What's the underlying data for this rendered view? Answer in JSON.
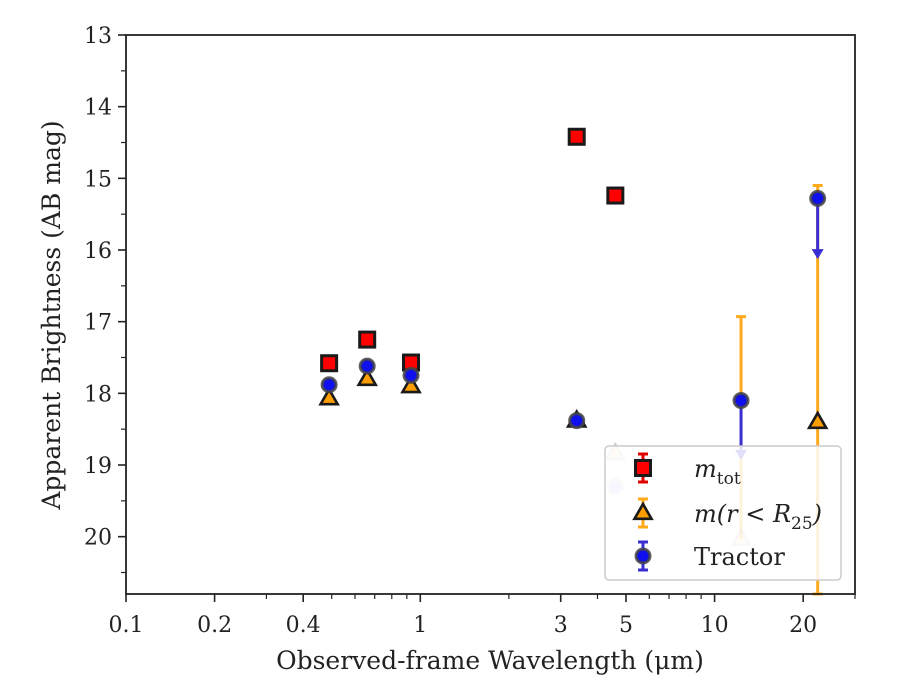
{
  "chart_data": {
    "type": "scatter",
    "xlabel": "Observed-frame Wavelength (μm)",
    "ylabel": "Apparent Brightness (AB mag)",
    "xscale": "log",
    "xlim": [
      0.1,
      30
    ],
    "ylim": [
      20.8,
      13
    ],
    "y_inverted": true,
    "grid": false,
    "legend_placement": "lower right",
    "x_ticks": [
      {
        "value": 0.1,
        "label": "0.1"
      },
      {
        "value": 0.2,
        "label": "0.2"
      },
      {
        "value": 0.4,
        "label": "0.4"
      },
      {
        "value": 1,
        "label": "1"
      },
      {
        "value": 3,
        "label": "3"
      },
      {
        "value": 5,
        "label": "5"
      },
      {
        "value": 10,
        "label": "10"
      },
      {
        "value": 20,
        "label": "20"
      }
    ],
    "y_ticks": [
      {
        "value": 13,
        "label": "13"
      },
      {
        "value": 14,
        "label": "14"
      },
      {
        "value": 15,
        "label": "15"
      },
      {
        "value": 16,
        "label": "16"
      },
      {
        "value": 17,
        "label": "17"
      },
      {
        "value": 18,
        "label": "18"
      },
      {
        "value": 19,
        "label": "19"
      },
      {
        "value": 20,
        "label": "20"
      }
    ],
    "series": [
      {
        "name": "m_tot",
        "legend": {
          "base": "m",
          "sub": "tot"
        },
        "marker": "square",
        "fill": "#ff0000",
        "edge": "#1a1a1a",
        "errcolor": "#e00000",
        "points": [
          {
            "x": 0.49,
            "y": 17.58
          },
          {
            "x": 0.66,
            "y": 17.25
          },
          {
            "x": 0.93,
            "y": 17.57
          },
          {
            "x": 3.4,
            "y": 14.42
          },
          {
            "x": 4.6,
            "y": 15.24
          }
        ]
      },
      {
        "name": "m(r<R25)",
        "legend": {
          "base": "m(r < R",
          "sub": "25",
          "tail": ")"
        },
        "marker": "triangle",
        "fill": "#ff9e00",
        "edge": "#1a1a1a",
        "errcolor": "#ffaa1d",
        "points": [
          {
            "x": 0.49,
            "y": 18.07
          },
          {
            "x": 0.66,
            "y": 17.8
          },
          {
            "x": 0.93,
            "y": 17.9
          },
          {
            "x": 3.4,
            "y": 18.38
          },
          {
            "x": 4.6,
            "y": 18.84,
            "faded": true
          },
          {
            "x": 12.3,
            "y": 20.03,
            "faded": true,
            "yerr_up": 3.1
          },
          {
            "x": 22.4,
            "y": 18.4,
            "yerr_up": 3.3,
            "yerr_down": 2.4
          }
        ]
      },
      {
        "name": "Tractor",
        "legend": {
          "base": "Tractor"
        },
        "marker": "circle",
        "fill": "#1010ee",
        "edge": "#444444",
        "errcolor": "#3a2fd2",
        "points": [
          {
            "x": 0.49,
            "y": 17.88
          },
          {
            "x": 0.66,
            "y": 17.62
          },
          {
            "x": 0.93,
            "y": 17.75
          },
          {
            "x": 3.4,
            "y": 18.38
          },
          {
            "x": 4.6,
            "y": 19.3,
            "faded": true
          },
          {
            "x": 12.3,
            "y": 18.1,
            "upper_limit_to": 18.9
          },
          {
            "x": 22.4,
            "y": 15.28,
            "upper_limit_to": 16.1
          }
        ]
      }
    ]
  }
}
